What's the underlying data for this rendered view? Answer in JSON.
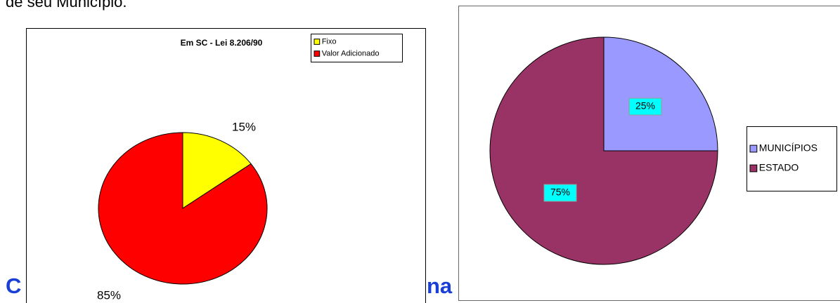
{
  "slide": {
    "caption": "de seu Município.",
    "heading_left": "C",
    "heading_right": "na"
  },
  "chart_data": [
    {
      "type": "pie",
      "title": "Em SC - Lei 8.206/90",
      "categories": [
        "Fixo",
        "Valor Adicionado"
      ],
      "values": [
        15,
        85
      ],
      "value_labels": [
        "15%",
        "85%"
      ],
      "colors": [
        "#ffff00",
        "#ff0000"
      ],
      "legend": "top-right"
    },
    {
      "type": "pie",
      "categories": [
        "MUNICÍPIOS",
        "ESTADO"
      ],
      "values": [
        25,
        75
      ],
      "value_labels": [
        "25%",
        "75%"
      ],
      "colors": [
        "#9999ff",
        "#993366"
      ],
      "label_background": "#00ffff",
      "legend": "right"
    }
  ]
}
